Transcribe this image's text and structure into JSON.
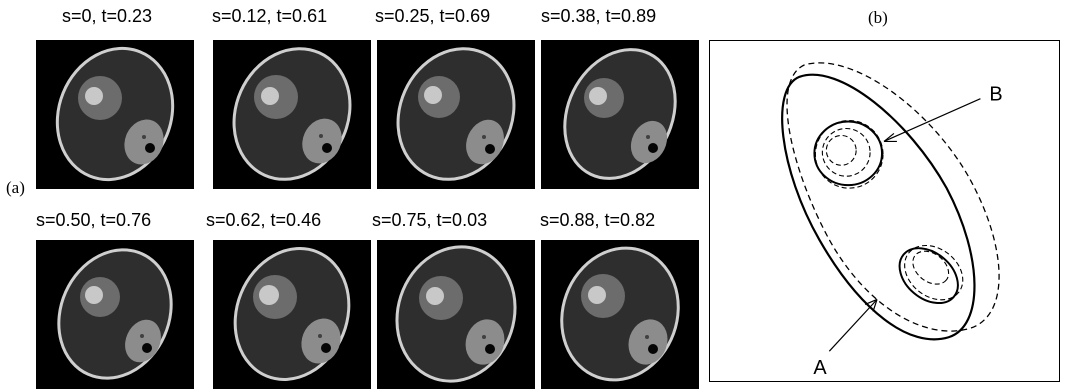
{
  "panel_a_label": "(a)",
  "panel_b_label": "(b)",
  "frames": [
    {
      "caption": "s=0, t=0.23"
    },
    {
      "caption": "s=0.12, t=0.61"
    },
    {
      "caption": "s=0.25, t=0.69"
    },
    {
      "caption": "s=0.38, t=0.89"
    },
    {
      "caption": "s=0.50, t=0.76"
    },
    {
      "caption": "s=0.62, t=0.46"
    },
    {
      "caption": "s=0.75, t=0.03"
    },
    {
      "caption": "s=0.88, t=0.82"
    }
  ],
  "schematic": {
    "label_a": "A",
    "label_b": "B"
  }
}
